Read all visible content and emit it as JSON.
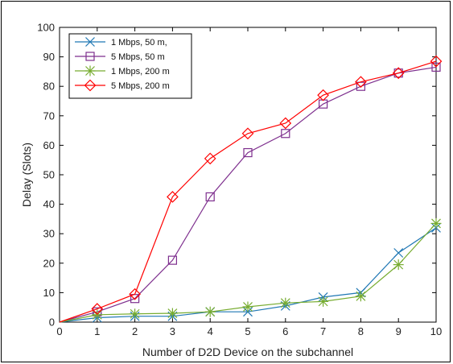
{
  "chart_data": {
    "type": "line",
    "title": "",
    "xlabel": "Number of D2D Device on the subchannel",
    "ylabel": "Delay (Slots)",
    "xlim": [
      0,
      10
    ],
    "ylim": [
      0,
      100
    ],
    "xticks": [
      "0",
      "1",
      "2",
      "3",
      "4",
      "5",
      "6",
      "7",
      "8",
      "9",
      "10"
    ],
    "yticks": [
      "0",
      "10",
      "20",
      "30",
      "40",
      "50",
      "60",
      "70",
      "80",
      "90",
      "100"
    ],
    "grid": false,
    "legend_position": "top-left",
    "series": [
      {
        "name": "1 Mbps, 50 m,",
        "color": "#1f77b4",
        "marker": "x",
        "x": [
          0,
          1,
          2,
          3,
          4,
          5,
          6,
          7,
          8,
          9,
          10
        ],
        "y": [
          0,
          1.5,
          2,
          2,
          3.5,
          3.5,
          5.5,
          8.5,
          10,
          23.5,
          32
        ]
      },
      {
        "name": "5 Mbps, 50 m",
        "color": "#7e2f8e",
        "marker": "square",
        "x": [
          0,
          1,
          2,
          3,
          4,
          5,
          6,
          7,
          8,
          9,
          10
        ],
        "y": [
          0,
          3.5,
          8,
          21,
          42.5,
          57.5,
          64,
          74,
          80,
          84.5,
          86.5
        ]
      },
      {
        "name": "1 Mbps, 200 m",
        "color": "#77ac30",
        "marker": "star",
        "x": [
          0,
          1,
          2,
          3,
          4,
          5,
          6,
          7,
          8,
          9,
          10
        ],
        "y": [
          0,
          2.5,
          2.8,
          3,
          3.5,
          5.2,
          6.5,
          7,
          8.8,
          19.5,
          33.5
        ]
      },
      {
        "name": "5 Mbps, 200 m",
        "color": "#ff0000",
        "marker": "diamond",
        "x": [
          0,
          1,
          2,
          3,
          4,
          5,
          6,
          7,
          8,
          9,
          10
        ],
        "y": [
          0,
          4.5,
          9.5,
          42.5,
          55.5,
          64,
          67.5,
          77,
          81.5,
          84.5,
          88.5
        ]
      }
    ]
  }
}
